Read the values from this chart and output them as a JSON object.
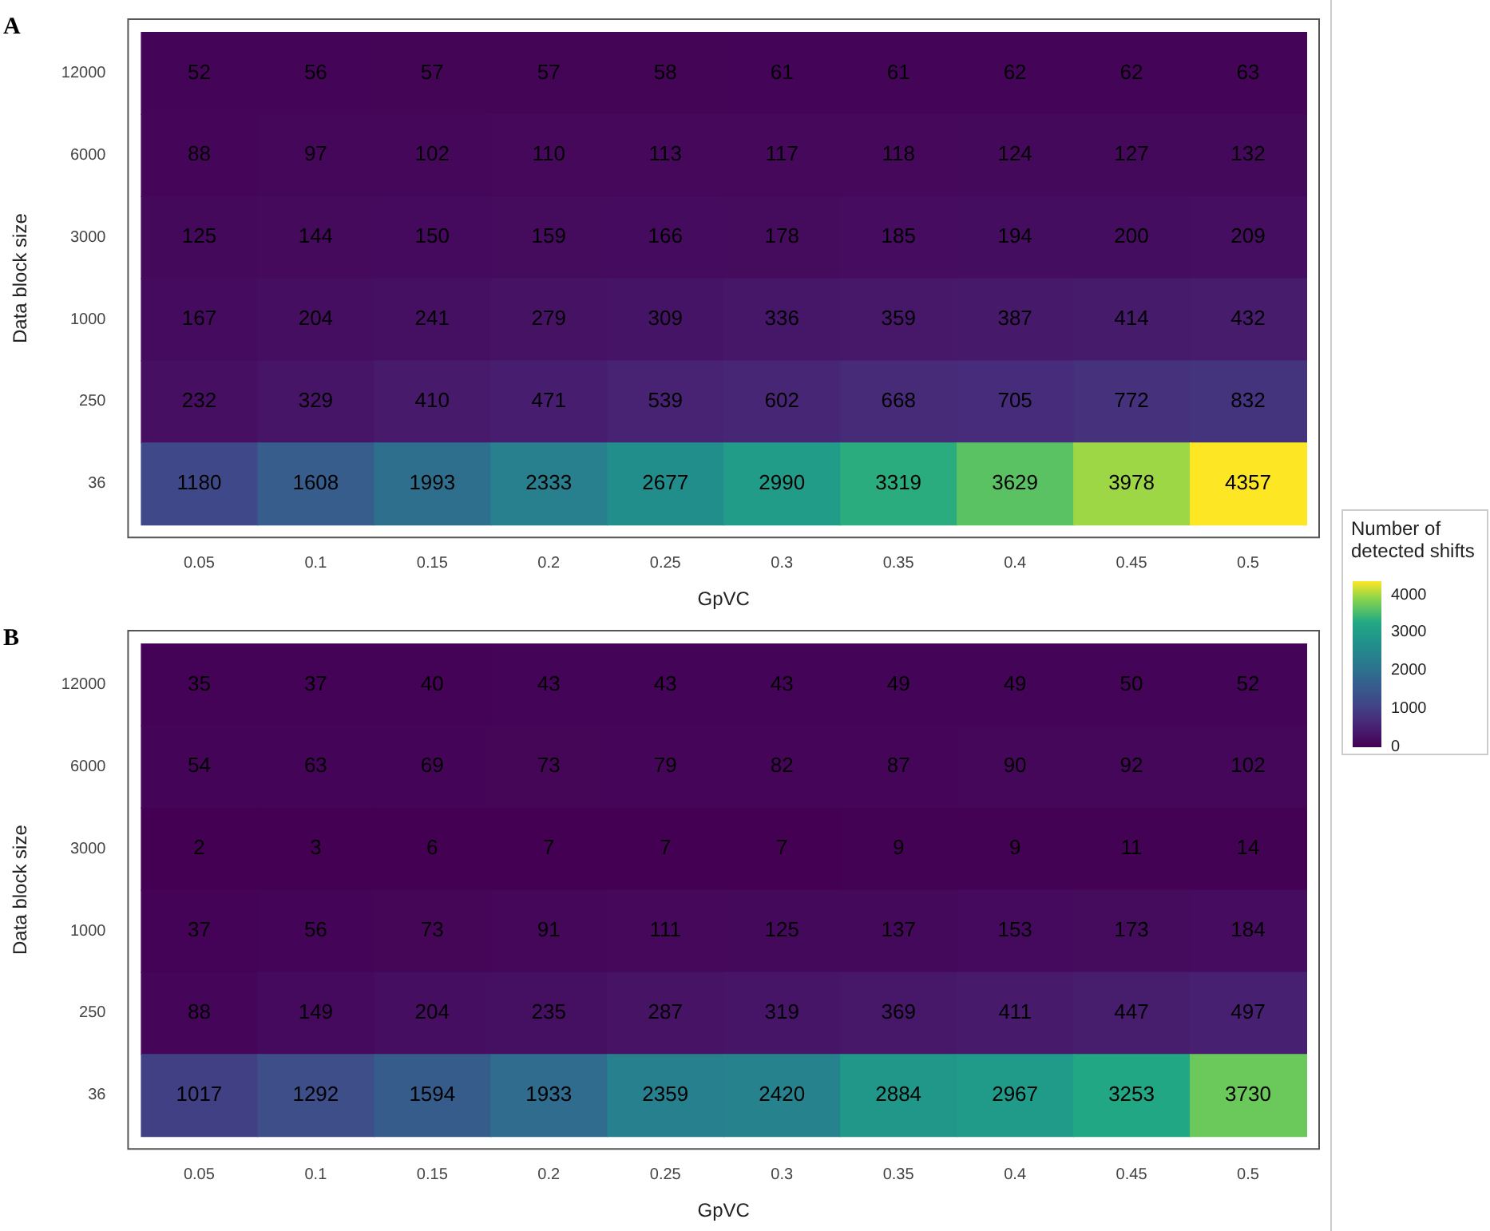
{
  "chart_data": [
    {
      "type": "heatmap",
      "title": "A",
      "xlabel": "GpVC",
      "ylabel": "Data block size",
      "legend_title": "Number of detected shifts",
      "clim": [
        0,
        4357
      ],
      "cticks": [
        0,
        1000,
        2000,
        3000,
        4000
      ],
      "data_labels": true,
      "categories": [
        "0.05",
        "0.1",
        "0.15",
        "0.2",
        "0.25",
        "0.3",
        "0.35",
        "0.4",
        "0.45",
        "0.5"
      ],
      "y_categories": [
        "12000",
        "6000",
        "3000",
        "1000",
        "250",
        "36"
      ],
      "cells": [
        [
          52,
          56,
          57,
          57,
          58,
          61,
          61,
          62,
          62,
          63
        ],
        [
          88,
          97,
          102,
          110,
          113,
          117,
          118,
          124,
          127,
          132
        ],
        [
          125,
          144,
          150,
          159,
          166,
          178,
          185,
          194,
          200,
          209
        ],
        [
          167,
          204,
          241,
          279,
          309,
          336,
          359,
          387,
          414,
          432
        ],
        [
          232,
          329,
          410,
          471,
          539,
          602,
          668,
          705,
          772,
          832
        ],
        [
          1180,
          1608,
          1993,
          2333,
          2677,
          2990,
          3319,
          3629,
          3978,
          4357
        ]
      ]
    },
    {
      "type": "heatmap",
      "title": "B",
      "xlabel": "GpVC",
      "ylabel": "Data block size",
      "data_labels": true,
      "categories": [
        "0.05",
        "0.1",
        "0.15",
        "0.2",
        "0.25",
        "0.3",
        "0.35",
        "0.4",
        "0.45",
        "0.5"
      ],
      "y_categories": [
        "12000",
        "6000",
        "3000",
        "1000",
        "250",
        "36"
      ],
      "cells": [
        [
          35,
          37,
          40,
          43,
          43,
          43,
          49,
          49,
          50,
          52
        ],
        [
          54,
          63,
          69,
          73,
          79,
          82,
          87,
          90,
          92,
          102
        ],
        [
          2,
          3,
          6,
          7,
          7,
          7,
          9,
          9,
          11,
          14
        ],
        [
          37,
          56,
          73,
          91,
          111,
          125,
          137,
          153,
          173,
          184
        ],
        [
          88,
          149,
          204,
          235,
          287,
          319,
          369,
          411,
          447,
          497
        ],
        [
          1017,
          1292,
          1594,
          1933,
          2359,
          2420,
          2884,
          2967,
          3253,
          3730
        ]
      ]
    }
  ]
}
